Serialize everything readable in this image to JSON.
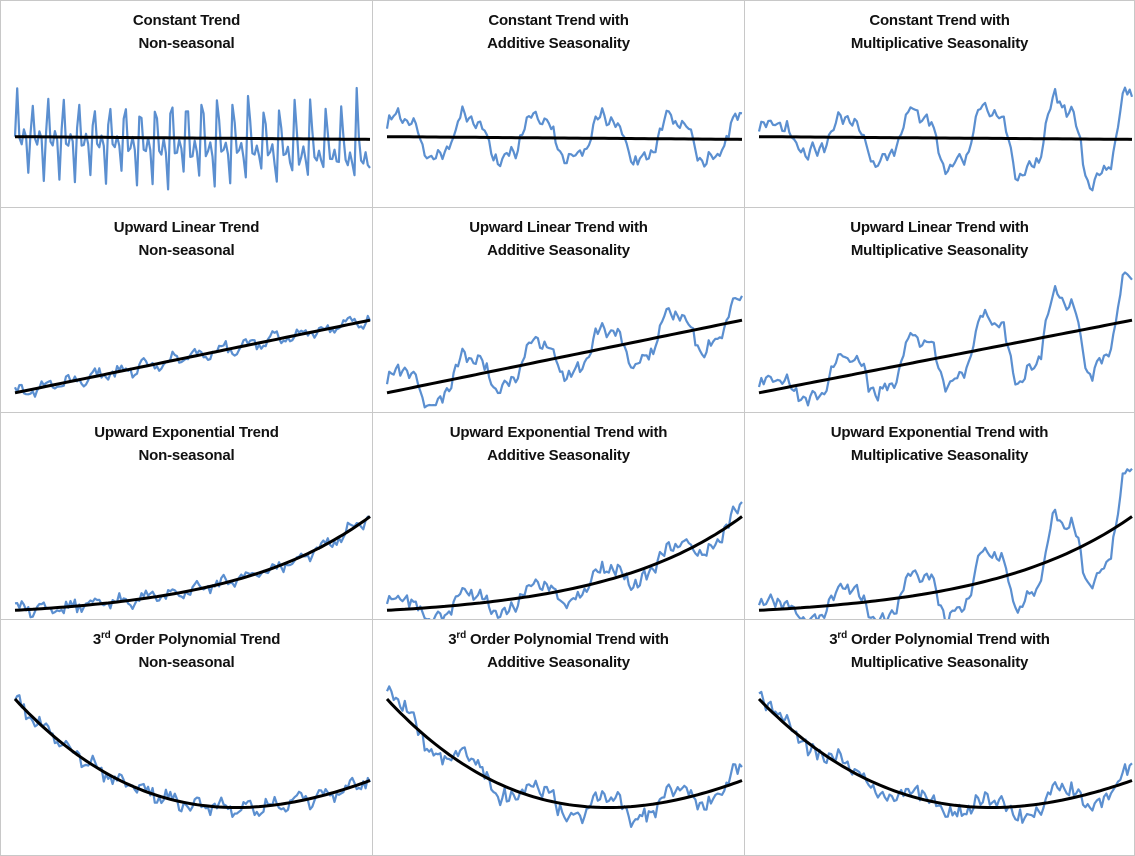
{
  "colors": {
    "series": "#5b8fd0",
    "trend": "#000000",
    "border": "#c8c8c8"
  },
  "chart_data": [
    {
      "type": "line",
      "title_line1": "Constant Trend",
      "title_line2": "Non-seasonal",
      "trend": "constant",
      "seasonality": "none"
    },
    {
      "type": "line",
      "title_line1": "Constant Trend with",
      "title_line2": "Additive Seasonality",
      "trend": "constant",
      "seasonality": "additive"
    },
    {
      "type": "line",
      "title_line1": "Constant Trend with",
      "title_line2": "Multiplicative Seasonality",
      "trend": "constant",
      "seasonality": "multiplicative"
    },
    {
      "type": "line",
      "title_line1": "Upward Linear Trend",
      "title_line2": "Non-seasonal",
      "trend": "linear",
      "seasonality": "none"
    },
    {
      "type": "line",
      "title_line1": "Upward Linear Trend with",
      "title_line2": "Additive Seasonality",
      "trend": "linear",
      "seasonality": "additive"
    },
    {
      "type": "line",
      "title_line1": "Upward Linear Trend with",
      "title_line2": "Multiplicative Seasonality",
      "trend": "linear",
      "seasonality": "multiplicative"
    },
    {
      "type": "line",
      "title_line1": "Upward Exponential Trend",
      "title_line2": "Non-seasonal",
      "trend": "exponential",
      "seasonality": "none"
    },
    {
      "type": "line",
      "title_line1": "Upward Exponential Trend with",
      "title_line2": "Additive Seasonality",
      "trend": "exponential",
      "seasonality": "additive"
    },
    {
      "type": "line",
      "title_line1": "Upward Exponential Trend with",
      "title_line2": "Multiplicative Seasonality",
      "trend": "exponential",
      "seasonality": "multiplicative"
    },
    {
      "type": "line",
      "title_sup": "rd",
      "title_line1_pre": "3",
      "title_line1": "Order Polynomial Trend",
      "title_line2": "Non-seasonal",
      "trend": "polynomial",
      "seasonality": "none"
    },
    {
      "type": "line",
      "title_sup": "rd",
      "title_line1_pre": "3",
      "title_line1": "Order Polynomial Trend with",
      "title_line2": "Additive Seasonality",
      "trend": "polynomial",
      "seasonality": "additive"
    },
    {
      "type": "line",
      "title_sup": "rd",
      "title_line1_pre": "3",
      "title_line1": "Order Polynomial Trend with",
      "title_line2": "Multiplicative Seasonality",
      "trend": "polynomial",
      "seasonality": "multiplicative"
    }
  ]
}
